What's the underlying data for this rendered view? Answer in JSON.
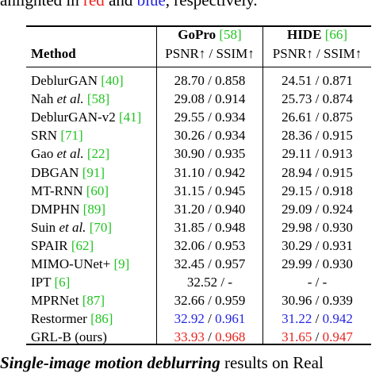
{
  "captions": {
    "top_prefix": "ahlighted in ",
    "top_red": "red",
    "top_and": " and ",
    "top_blue": "blue",
    "top_suffix": ", respectively.",
    "bottom_prefix": "",
    "bottom_em": "Single-image motion deblurring",
    "bottom_suffix": " results on Real"
  },
  "table": {
    "method_header": "Method",
    "gopro_header": "GoPro",
    "gopro_ref": "[58]",
    "hide_header": "HIDE",
    "hide_ref": "[66]",
    "metric_header_gopro": "PSNR↑ / SSIM↑",
    "metric_header_hide": "PSNR↑ / SSIM↑",
    "rows": [
      {
        "name": "DeblurGAN",
        "name_it": "",
        "ref": "[40]",
        "gopro_psnr": "28.70",
        "gopro_ssim": "0.858",
        "hide_psnr": "24.51",
        "hide_ssim": "0.871"
      },
      {
        "name": "Nah ",
        "name_it": "et al.",
        "ref": "[58]",
        "gopro_psnr": "29.08",
        "gopro_ssim": "0.914",
        "hide_psnr": "25.73",
        "hide_ssim": "0.874"
      },
      {
        "name": "DeblurGAN-v2",
        "name_it": "",
        "ref": "[41]",
        "gopro_psnr": "29.55",
        "gopro_ssim": "0.934",
        "hide_psnr": "26.61",
        "hide_ssim": "0.875"
      },
      {
        "name": "SRN",
        "name_it": "",
        "ref": "[71]",
        "gopro_psnr": "30.26",
        "gopro_ssim": "0.934",
        "hide_psnr": "28.36",
        "hide_ssim": "0.915"
      },
      {
        "name": "Gao ",
        "name_it": "et al.",
        "ref": "[22]",
        "gopro_psnr": "30.90",
        "gopro_ssim": "0.935",
        "hide_psnr": "29.11",
        "hide_ssim": "0.913"
      },
      {
        "name": "DBGAN",
        "name_it": "",
        "ref": "[91]",
        "gopro_psnr": "31.10",
        "gopro_ssim": "0.942",
        "hide_psnr": "28.94",
        "hide_ssim": "0.915"
      },
      {
        "name": "MT-RNN",
        "name_it": "",
        "ref": "[60]",
        "gopro_psnr": "31.15",
        "gopro_ssim": "0.945",
        "hide_psnr": "29.15",
        "hide_ssim": "0.918"
      },
      {
        "name": "DMPHN",
        "name_it": "",
        "ref": "[89]",
        "gopro_psnr": "31.20",
        "gopro_ssim": "0.940",
        "hide_psnr": "29.09",
        "hide_ssim": "0.924"
      },
      {
        "name": "Suin ",
        "name_it": "et al.",
        "ref": "[70]",
        "gopro_psnr": "31.85",
        "gopro_ssim": "0.948",
        "hide_psnr": "29.98",
        "hide_ssim": "0.930"
      },
      {
        "name": "SPAIR",
        "name_it": "",
        "ref": "[62]",
        "gopro_psnr": "32.06",
        "gopro_ssim": "0.953",
        "hide_psnr": "30.29",
        "hide_ssim": "0.931"
      },
      {
        "name": "MIMO-UNet+",
        "name_it": "",
        "ref": "[9]",
        "gopro_psnr": "32.45",
        "gopro_ssim": "0.957",
        "hide_psnr": "29.99",
        "hide_ssim": "0.930"
      },
      {
        "name": "IPT",
        "name_it": "",
        "ref": "[6]",
        "gopro_psnr": "32.52",
        "gopro_ssim": "-",
        "hide_psnr": "-",
        "hide_ssim": "-"
      },
      {
        "name": "MPRNet",
        "name_it": "",
        "ref": "[87]",
        "gopro_psnr": "32.66",
        "gopro_ssim": "0.959",
        "hide_psnr": "30.96",
        "hide_ssim": "0.939"
      },
      {
        "name": "Restormer",
        "name_it": "",
        "ref": "[86]",
        "gopro_psnr": "32.92",
        "gopro_ssim": "0.961",
        "hide_psnr": "31.22",
        "hide_ssim": "0.942",
        "color": "blue"
      },
      {
        "name": "GRL-B (ours)",
        "name_it": "",
        "ref": "",
        "gopro_psnr": "33.93",
        "gopro_ssim": "0.968",
        "hide_psnr": "31.65",
        "hide_ssim": "0.947",
        "color": "red"
      }
    ]
  },
  "colors": {
    "red": "#e8231e",
    "blue": "#2424e6",
    "citation_green": "#22c322"
  }
}
